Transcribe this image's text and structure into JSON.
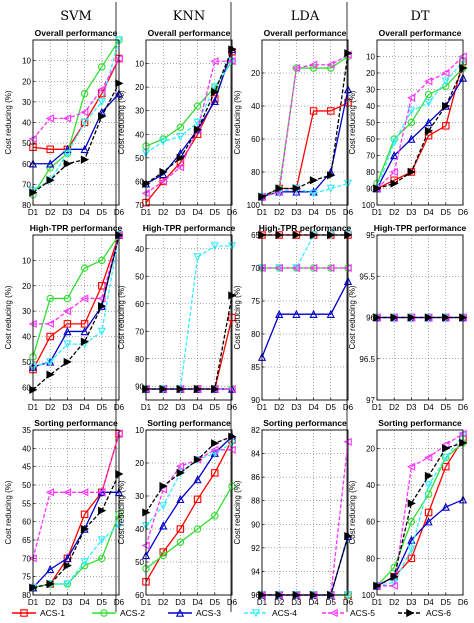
{
  "figure": {
    "column_titles": [
      "SVM",
      "KNN",
      "LDA",
      "DT"
    ],
    "row_titles": [
      "Overall performance",
      "High-TPR performance",
      "Sorting performance"
    ],
    "ylabel": "Cost reducing (%)"
  },
  "chart_data": {
    "type": "line",
    "categories": [
      "D1",
      "D2",
      "D3",
      "D4",
      "D5",
      "D6"
    ],
    "series_names": [
      "ACS-1",
      "ACS-2",
      "ACS-3",
      "ACS-4",
      "ACS-5",
      "ACS-6"
    ],
    "series_colors": [
      "#ff0000",
      "#33dd33",
      "#0000cc",
      "#33eeff",
      "#ff33ff",
      "#000000"
    ],
    "series_dashed": [
      false,
      false,
      false,
      true,
      true,
      true
    ],
    "series_markers": [
      "square",
      "circle",
      "triangle-up",
      "triangle-down",
      "triangle-left",
      "triangle-right"
    ],
    "panels": [
      {
        "row": 0,
        "col": 0,
        "title": "Overall performance",
        "ylim": [
          80,
          0
        ],
        "ticks": [
          80,
          70,
          60,
          50,
          40,
          30,
          20,
          10
        ],
        "series": [
          [
            52,
            53,
            53,
            40,
            26,
            9
          ],
          [
            75,
            62,
            55,
            26,
            13,
            0
          ],
          [
            60,
            60,
            53,
            53,
            35,
            26
          ],
          [
            73,
            68,
            55,
            40,
            30,
            0
          ],
          [
            48,
            38,
            38,
            35,
            24,
            9
          ],
          [
            74,
            68,
            60,
            58,
            37,
            21
          ]
        ]
      },
      {
        "row": 0,
        "col": 1,
        "title": "Overall performance",
        "ylim": [
          70,
          0
        ],
        "ticks": [
          70,
          60,
          50,
          40,
          30,
          20,
          10
        ],
        "series": [
          [
            69,
            60,
            52,
            40,
            25,
            5
          ],
          [
            45,
            42,
            37,
            28,
            20,
            9
          ],
          [
            61,
            57,
            48,
            38,
            26,
            4
          ],
          [
            48,
            43,
            41,
            35,
            20,
            9
          ],
          [
            65,
            60,
            54,
            38,
            9,
            9
          ],
          [
            61,
            56,
            50,
            38,
            22,
            4
          ]
        ]
      },
      {
        "row": 0,
        "col": 2,
        "title": "Overall performance",
        "ylim": [
          100,
          0
        ],
        "ticks": [
          100,
          80,
          60,
          40,
          20
        ],
        "series": [
          [
            95,
            90,
            90,
            43,
            43,
            38
          ],
          [
            95,
            90,
            17,
            17,
            17,
            10
          ],
          [
            95,
            92,
            92,
            92,
            80,
            30
          ],
          [
            95,
            92,
            90,
            93,
            90,
            87
          ],
          [
            95,
            92,
            17,
            15,
            15,
            9
          ],
          [
            95,
            90,
            90,
            85,
            82,
            8
          ]
        ]
      },
      {
        "row": 0,
        "col": 3,
        "title": "Overall performance",
        "ylim": [
          100,
          0
        ],
        "ticks": [
          100,
          90,
          80,
          70,
          60,
          50,
          40,
          30,
          20,
          10
        ],
        "series": [
          [
            90,
            85,
            80,
            58,
            52,
            13
          ],
          [
            87,
            60,
            50,
            33,
            28,
            17
          ],
          [
            90,
            70,
            60,
            50,
            40,
            23
          ],
          [
            90,
            62,
            43,
            38,
            25,
            13
          ],
          [
            90,
            80,
            35,
            25,
            20,
            10
          ],
          [
            90,
            87,
            80,
            55,
            40,
            17
          ]
        ]
      },
      {
        "row": 1,
        "col": 0,
        "title": "High-TPR performance",
        "ylim": [
          65,
          0
        ],
        "ticks": [
          60,
          50,
          40,
          30,
          20,
          10
        ],
        "series": [
          [
            53,
            40,
            35,
            35,
            20,
            0
          ],
          [
            48,
            25,
            25,
            13,
            10,
            0
          ],
          [
            52,
            50,
            38,
            38,
            28,
            0
          ],
          [
            52,
            50,
            43,
            43,
            38,
            0
          ],
          [
            35,
            35,
            30,
            25,
            25,
            0
          ],
          [
            61,
            55,
            50,
            42,
            28,
            0
          ]
        ]
      },
      {
        "row": 1,
        "col": 1,
        "title": "High-TPR performance",
        "ylim": [
          95,
          35
        ],
        "ticks": [
          90,
          80,
          70,
          60,
          50,
          40
        ],
        "series": [
          [
            91,
            91,
            91,
            91,
            91,
            65
          ],
          [
            91,
            91,
            91,
            91,
            91,
            91
          ],
          [
            91,
            91,
            91,
            91,
            91,
            91
          ],
          [
            91,
            91,
            91,
            43,
            39,
            39
          ],
          [
            91,
            91,
            91,
            91,
            91,
            91
          ],
          [
            91,
            91,
            91,
            91,
            91,
            57
          ]
        ]
      },
      {
        "row": 1,
        "col": 2,
        "title": "High-TPR performance",
        "ylim": [
          90,
          65
        ],
        "ticks": [
          90,
          85,
          80,
          75,
          70,
          65
        ],
        "series": [
          [
            65,
            65,
            65,
            65,
            65,
            65
          ],
          [
            70,
            70,
            70,
            70,
            70,
            70
          ],
          [
            83.5,
            77,
            77,
            77,
            77,
            72
          ],
          [
            70,
            70,
            70,
            65,
            65,
            65
          ],
          [
            70,
            70,
            70,
            70,
            70,
            70
          ],
          [
            65,
            65,
            65,
            65,
            65,
            65
          ]
        ]
      },
      {
        "row": 1,
        "col": 3,
        "title": "High-TPR performance",
        "ylim": [
          97,
          95
        ],
        "ticks": [
          97,
          96.5,
          96,
          95.5,
          95
        ],
        "series": [
          [
            96,
            96,
            96,
            96,
            96,
            96
          ],
          [
            96,
            96,
            96,
            96,
            96,
            96
          ],
          [
            96,
            96,
            96,
            96,
            96,
            96
          ],
          [
            96,
            96,
            96,
            96,
            96,
            96
          ],
          [
            96,
            96,
            96,
            96,
            96,
            96
          ],
          [
            96,
            96,
            96,
            96,
            96,
            96
          ]
        ]
      },
      {
        "row": 2,
        "col": 0,
        "title": "Sorting performance",
        "ylim": [
          80,
          35
        ],
        "ticks": [
          80,
          75,
          70,
          65,
          60,
          55,
          50,
          45,
          40,
          35
        ],
        "series": [
          [
            78,
            77,
            70,
            58,
            52,
            36
          ],
          [
            78,
            77,
            77,
            72,
            70,
            58
          ],
          [
            78,
            73,
            70,
            62,
            52,
            52
          ],
          [
            78,
            77,
            77,
            71,
            65,
            61
          ],
          [
            70,
            52,
            52,
            52,
            52,
            36
          ],
          [
            78,
            77,
            72,
            62,
            57,
            47
          ]
        ]
      },
      {
        "row": 2,
        "col": 1,
        "title": "Sorting performance",
        "ylim": [
          60,
          10
        ],
        "ticks": [
          60,
          50,
          40,
          30,
          20,
          10
        ],
        "series": [
          [
            56,
            47,
            40,
            31,
            23,
            13
          ],
          [
            52,
            48,
            44,
            40,
            36,
            27
          ],
          [
            48,
            39,
            31,
            25,
            17,
            12
          ],
          [
            39,
            33,
            23,
            19,
            17,
            14
          ],
          [
            45,
            28,
            21,
            19,
            16,
            16
          ],
          [
            35,
            27,
            23,
            19,
            14,
            12
          ]
        ]
      },
      {
        "row": 2,
        "col": 2,
        "title": "Sorting performance",
        "ylim": [
          96,
          82
        ],
        "ticks": [
          96,
          94,
          92,
          90,
          88,
          86,
          84,
          82
        ],
        "series": [
          [
            96,
            96,
            96,
            96,
            96,
            96
          ],
          [
            96,
            96,
            96,
            96,
            96,
            96
          ],
          [
            96,
            96,
            96,
            96,
            96,
            91
          ],
          [
            96,
            96,
            96,
            96,
            96,
            96
          ],
          [
            96,
            96,
            96,
            96,
            96,
            83
          ],
          [
            96,
            96,
            96,
            96,
            96,
            91
          ]
        ]
      },
      {
        "row": 2,
        "col": 3,
        "title": "Sorting performance",
        "ylim": [
          100,
          10
        ],
        "ticks": [
          100,
          80,
          60,
          40,
          20
        ],
        "series": [
          [
            95,
            90,
            80,
            55,
            30,
            15
          ],
          [
            95,
            85,
            60,
            45,
            25,
            17
          ],
          [
            95,
            90,
            70,
            60,
            52,
            48
          ],
          [
            95,
            93,
            75,
            40,
            25,
            13
          ],
          [
            95,
            95,
            30,
            25,
            18,
            12
          ],
          [
            95,
            90,
            50,
            35,
            20,
            17
          ]
        ]
      }
    ]
  }
}
